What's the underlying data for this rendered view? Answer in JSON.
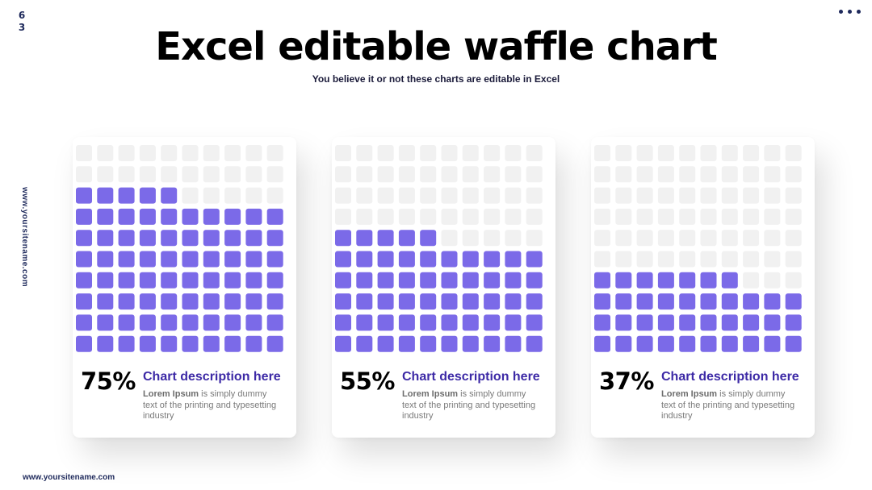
{
  "page_number": "63",
  "title": "Excel editable waffle chart",
  "subtitle": "You believe it or not these charts are editable in Excel",
  "side_url": "www.yoursitename.com",
  "footer_url": "www.yoursitename.com",
  "colors": {
    "filled": "#7b6ae8",
    "empty": "#f1f1f1",
    "accent_text": "#3d2aa6"
  },
  "chart_data": [
    {
      "type": "waffle",
      "rows": 10,
      "cols": 10,
      "value": 75,
      "label": "75%",
      "description_title": "Chart description here",
      "description_bold": "Lorem Ipsum",
      "description_rest": " is simply dummy text of the printing and typesetting industry"
    },
    {
      "type": "waffle",
      "rows": 10,
      "cols": 10,
      "value": 55,
      "label": "55%",
      "description_title": "Chart description here",
      "description_bold": "Lorem Ipsum",
      "description_rest": " is simply dummy text of the printing and typesetting industry"
    },
    {
      "type": "waffle",
      "rows": 10,
      "cols": 10,
      "value": 37,
      "label": "37%",
      "description_title": "Chart description here",
      "description_bold": "Lorem Ipsum",
      "description_rest": " is simply dummy text of the printing and typesetting industry"
    }
  ]
}
